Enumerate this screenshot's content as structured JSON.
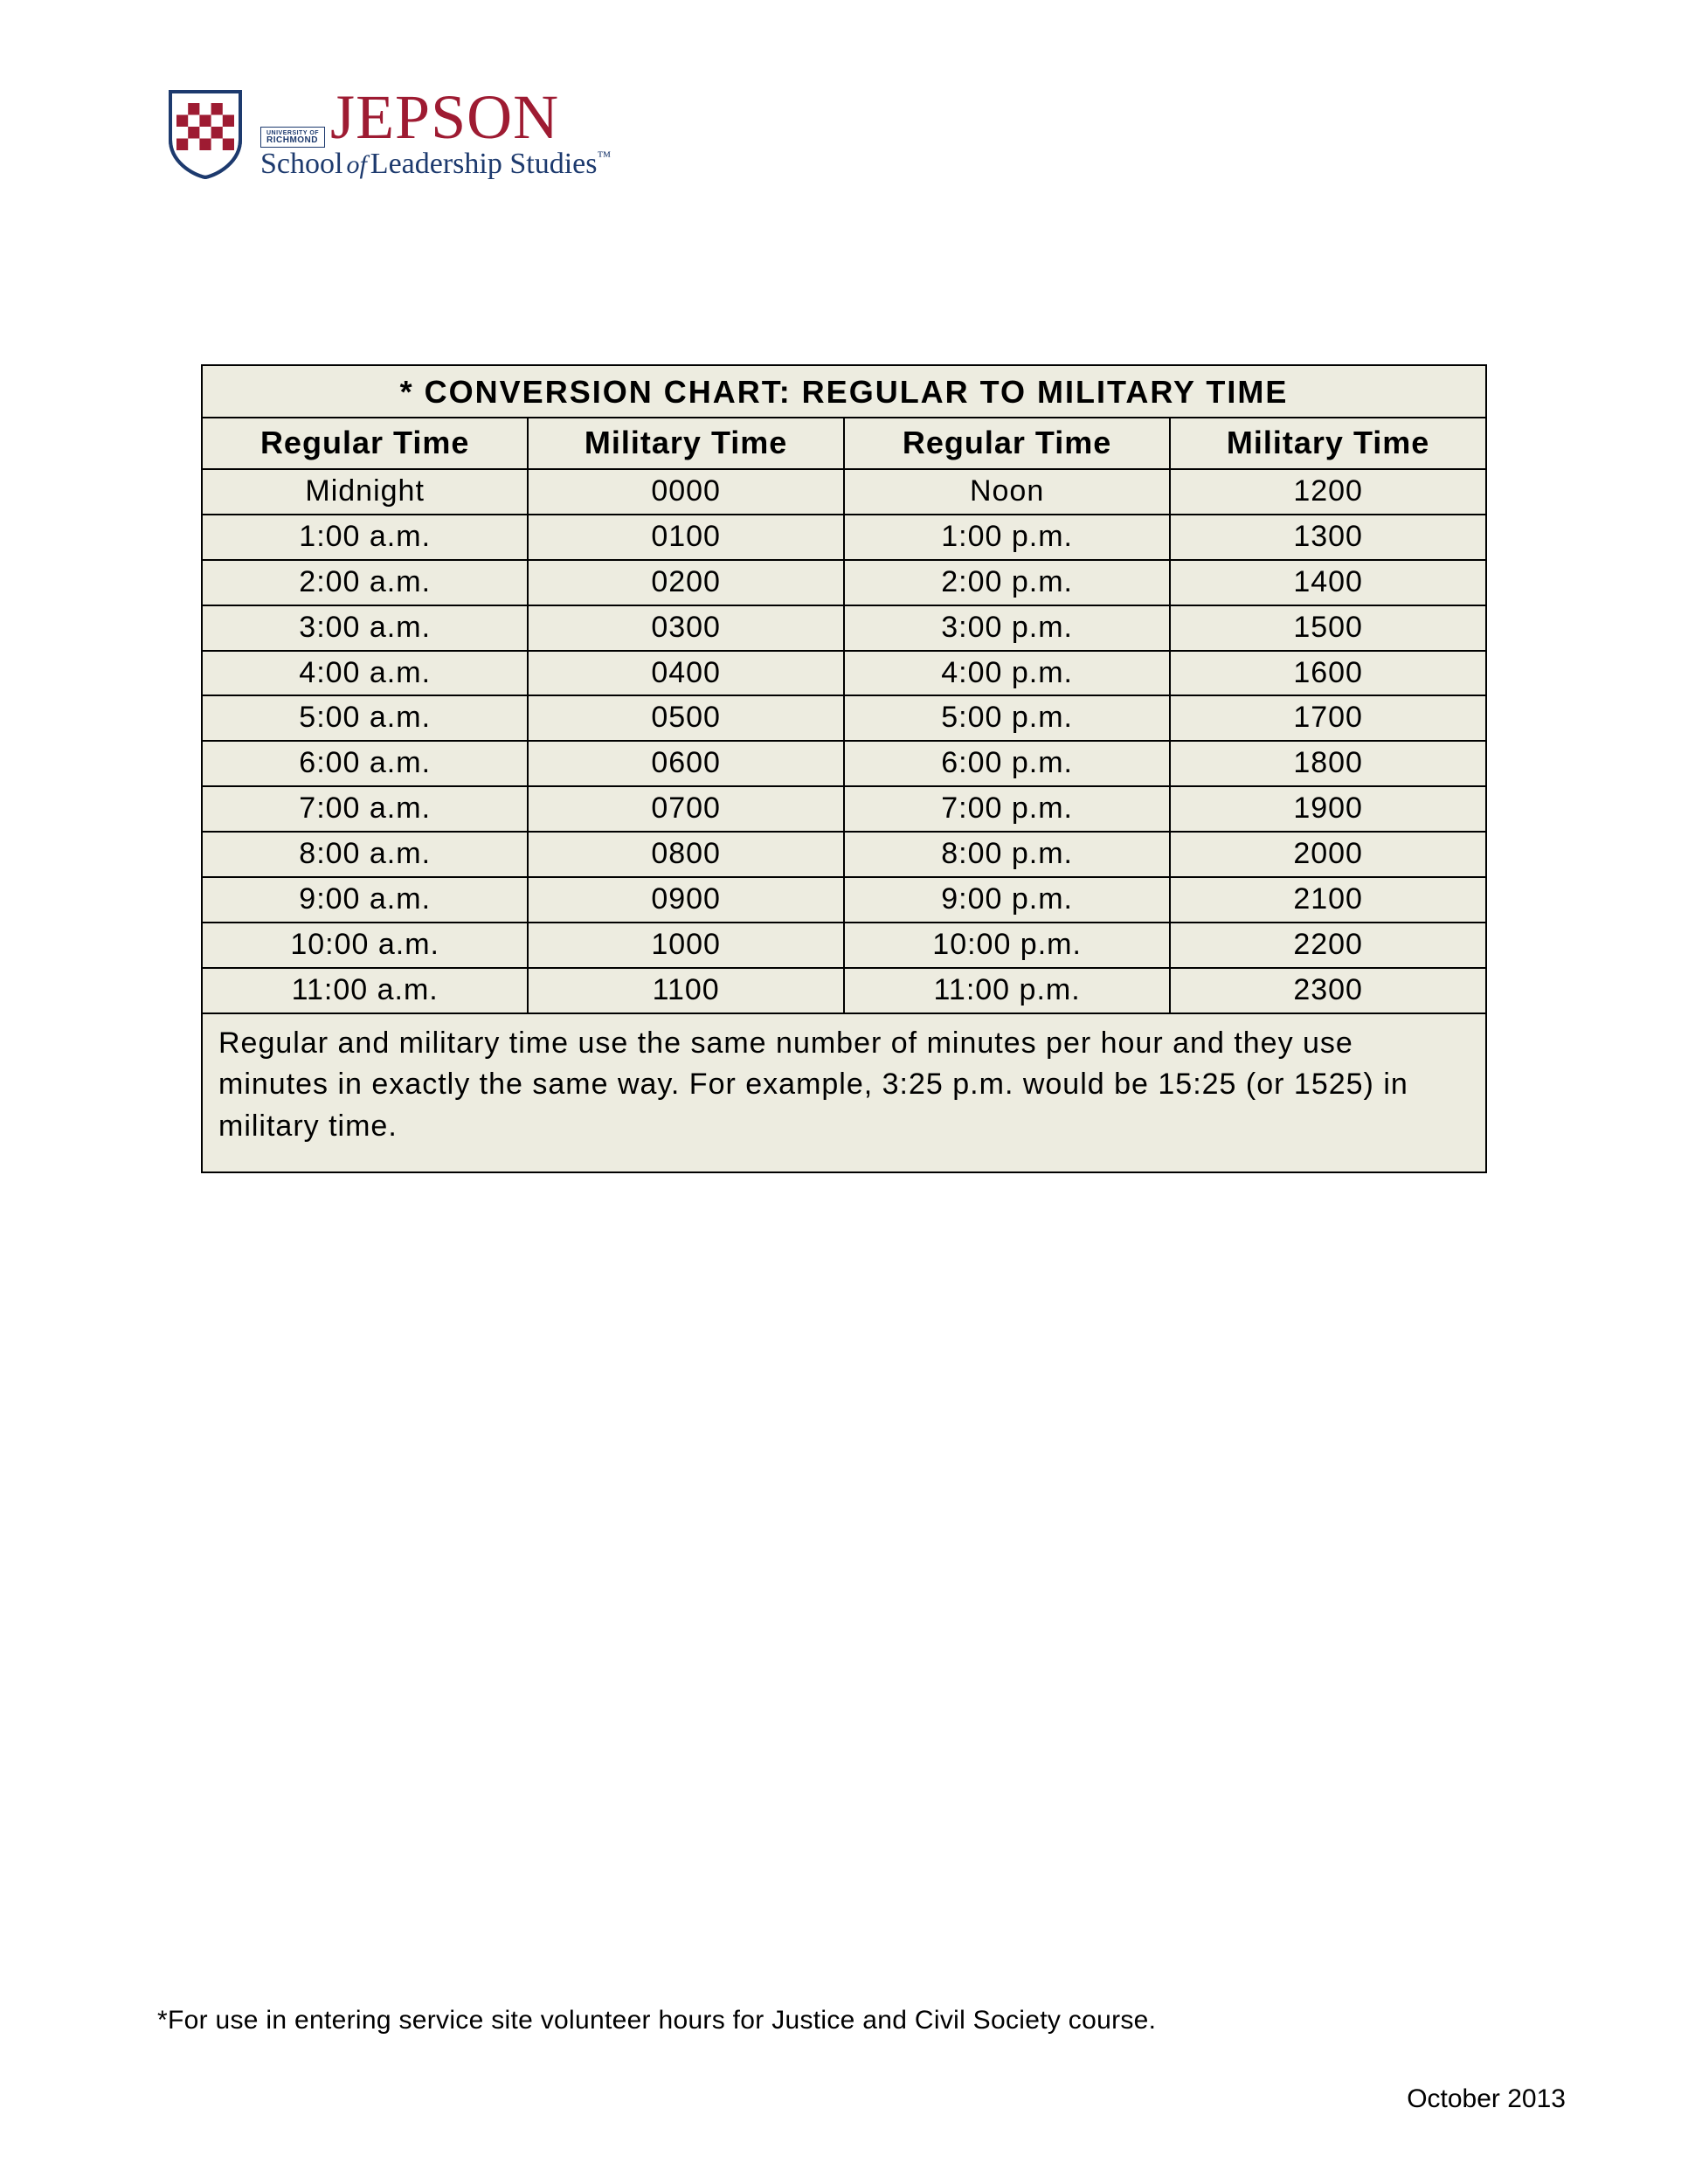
{
  "logo": {
    "university_label": "RICHMOND",
    "university_small": "UNIVERSITY OF",
    "name": "JEPSON",
    "subtitle_prefix": "School",
    "subtitle_of": "of",
    "subtitle_suffix": "Leadership Studies",
    "tm": "™",
    "shield_colors": {
      "red": "#9e1b32",
      "white": "#ffffff",
      "navy": "#1d3a6e"
    }
  },
  "table": {
    "title": "* CONVERSION CHART: REGULAR TO MILITARY TIME",
    "headers": [
      "Regular Time",
      "Military Time",
      "Regular Time",
      "Military Time"
    ],
    "rows": [
      [
        "Midnight",
        "0000",
        "Noon",
        "1200"
      ],
      [
        "1:00 a.m.",
        "0100",
        "1:00 p.m.",
        "1300"
      ],
      [
        "2:00 a.m.",
        "0200",
        "2:00 p.m.",
        "1400"
      ],
      [
        "3:00 a.m.",
        "0300",
        "3:00 p.m.",
        "1500"
      ],
      [
        "4:00 a.m.",
        "0400",
        "4:00 p.m.",
        "1600"
      ],
      [
        "5:00 a.m.",
        "0500",
        "5:00 p.m.",
        "1700"
      ],
      [
        "6:00 a.m.",
        "0600",
        "6:00 p.m.",
        "1800"
      ],
      [
        "7:00 a.m.",
        "0700",
        "7:00 p.m.",
        "1900"
      ],
      [
        "8:00 a.m.",
        "0800",
        "8:00 p.m.",
        "2000"
      ],
      [
        "9:00 a.m.",
        "0900",
        "9:00 p.m.",
        "2100"
      ],
      [
        "10:00 a.m.",
        "1000",
        "10:00 p.m.",
        "2200"
      ],
      [
        "11:00 a.m.",
        "1100",
        "11:00 p.m.",
        "2300"
      ]
    ],
    "note": "Regular and military time use the same number of minutes per hour and they use minutes in exactly the same way. For example, 3:25 p.m. would be 15:25 (or 1525) in military time.",
    "background_color": "#edece0",
    "border_color": "#000000",
    "title_fontsize": 36,
    "header_fontsize": 36,
    "cell_fontsize": 34,
    "col_widths_pct": [
      25,
      25,
      25,
      25
    ]
  },
  "footnote": "*For use in entering service site volunteer hours for Justice and Civil Society course.",
  "date": "October 2013"
}
